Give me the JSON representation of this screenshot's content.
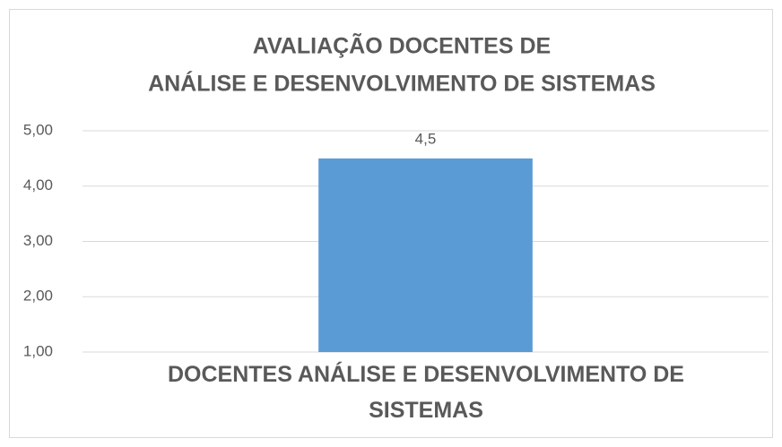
{
  "chart_data": {
    "type": "bar",
    "title": [
      "AVALIAÇÃO DOCENTES DE",
      "ANÁLISE E DESENVOLVIMENTO DE SISTEMAS"
    ],
    "categories": [
      "DOCENTES ANÁLISE E DESENVOLVIMENTO DE SISTEMAS"
    ],
    "values": [
      4.5
    ],
    "value_labels": [
      "4,5"
    ],
    "color": "#5b9bd5",
    "ylim": [
      1,
      5
    ],
    "yticks": [
      {
        "value": 1,
        "label": "1,00"
      },
      {
        "value": 2,
        "label": "2,00"
      },
      {
        "value": 3,
        "label": "3,00"
      },
      {
        "value": 4,
        "label": "4,00"
      },
      {
        "value": 5,
        "label": "5,00"
      }
    ],
    "grid": true
  }
}
